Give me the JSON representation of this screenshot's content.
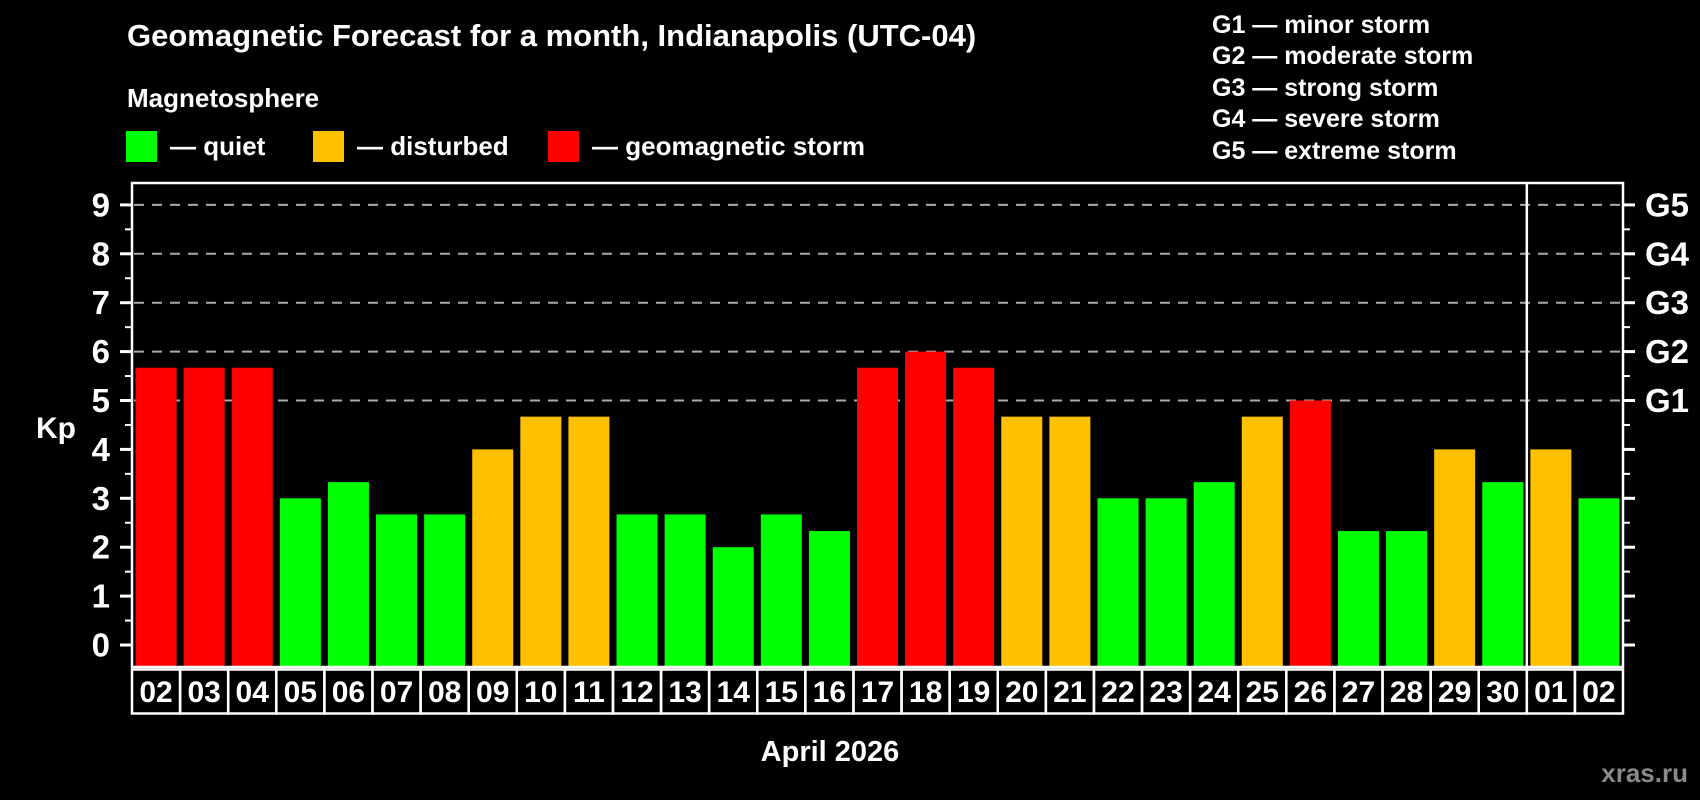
{
  "page": {
    "watermark": "xras.ru"
  },
  "chart_data": {
    "type": "bar",
    "title": "Geomagnetic Forecast for a month, Indianapolis (UTC-04)",
    "subtitle": "Magnetosphere",
    "ylabel": "Kp",
    "month_label": "April 2026",
    "ylim": [
      0,
      9
    ],
    "yticks": [
      0,
      1,
      2,
      3,
      4,
      5,
      6,
      7,
      8,
      9
    ],
    "grid_levels": [
      5,
      6,
      7,
      8,
      9
    ],
    "grid_on": true,
    "legend_position": "top-left",
    "right_axis": [
      {
        "kp": 5,
        "label": "G1"
      },
      {
        "kp": 6,
        "label": "G2"
      },
      {
        "kp": 7,
        "label": "G3"
      },
      {
        "kp": 8,
        "label": "G4"
      },
      {
        "kp": 9,
        "label": "G5"
      }
    ],
    "legend": [
      {
        "key": "quiet",
        "label": "— quiet",
        "color": "#00FF00"
      },
      {
        "key": "disturbed",
        "label": "— disturbed",
        "color": "#FFC000"
      },
      {
        "key": "storm",
        "label": "— geomagnetic storm",
        "color": "#FF0000"
      }
    ],
    "g_legend": [
      "G1 — minor storm",
      "G2 — moderate storm",
      "G3 — strong storm",
      "G4 — severe storm",
      "G5 — extreme storm"
    ],
    "categories": [
      "02",
      "03",
      "04",
      "05",
      "06",
      "07",
      "08",
      "09",
      "10",
      "11",
      "12",
      "13",
      "14",
      "15",
      "16",
      "17",
      "18",
      "19",
      "20",
      "21",
      "22",
      "23",
      "24",
      "25",
      "26",
      "27",
      "28",
      "29",
      "30",
      "01",
      "02"
    ],
    "values": [
      5.67,
      5.67,
      5.67,
      3,
      3.33,
      2.67,
      2.67,
      4,
      4.67,
      4.67,
      2.67,
      2.67,
      2,
      2.67,
      2.33,
      5.67,
      6,
      5.67,
      4.67,
      4.67,
      3,
      3,
      3.33,
      4.67,
      5,
      2.33,
      2.33,
      4,
      3.33,
      4,
      3
    ],
    "statuses": [
      "storm",
      "storm",
      "storm",
      "quiet",
      "quiet",
      "quiet",
      "quiet",
      "disturbed",
      "disturbed",
      "disturbed",
      "quiet",
      "quiet",
      "quiet",
      "quiet",
      "quiet",
      "storm",
      "storm",
      "storm",
      "disturbed",
      "disturbed",
      "quiet",
      "quiet",
      "quiet",
      "disturbed",
      "storm",
      "quiet",
      "quiet",
      "disturbed",
      "quiet",
      "disturbed",
      "quiet"
    ],
    "month_boundary_index": 29,
    "axis_color": "#FFFFFF",
    "grid_color": "#AAAAAA",
    "background": "#000000",
    "watermark_color": "#8A8A8A"
  }
}
